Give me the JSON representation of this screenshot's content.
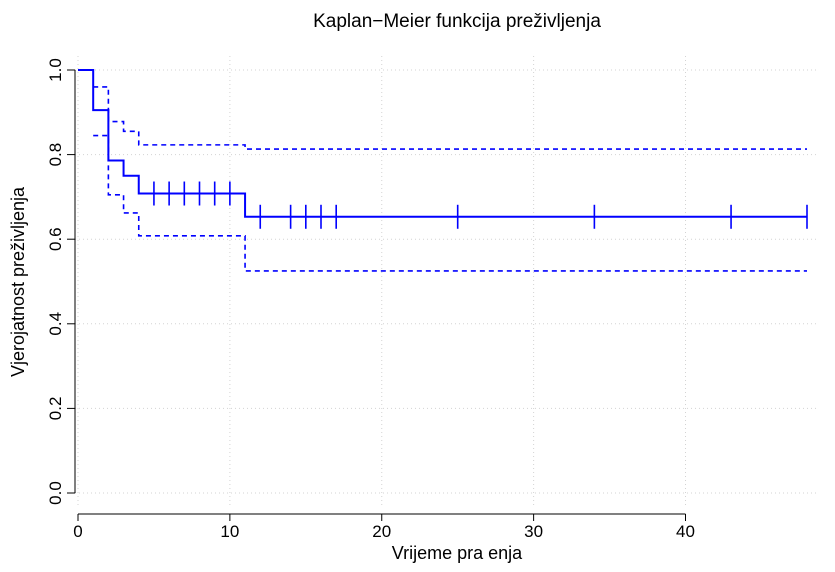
{
  "chart_data": {
    "type": "line",
    "title": "Kaplan−Meier funkcija preživljenja",
    "xlabel": "Vrijeme pra enja",
    "ylabel": "Vjerojatnost preživljenja",
    "xlim": [
      0,
      48
    ],
    "ylim": [
      0,
      1
    ],
    "x_ticks": [
      0,
      10,
      20,
      30,
      40
    ],
    "y_ticks": [
      0.0,
      0.2,
      0.4,
      0.6,
      0.8,
      1.0
    ],
    "x_tick_labels": [
      "0",
      "10",
      "20",
      "30",
      "40"
    ],
    "y_tick_labels": [
      "0.0",
      "0.2",
      "0.4",
      "0.6",
      "0.8",
      "1.0"
    ],
    "grid": true,
    "color": "#0000ff",
    "series": [
      {
        "style": "solid",
        "x": [
          0,
          1,
          2,
          3,
          4,
          11,
          48
        ],
        "y": [
          1.0,
          0.905,
          0.786,
          0.75,
          0.708,
          0.653,
          0.653
        ],
        "censor_marks": [
          {
            "x": 5,
            "y": 0.708
          },
          {
            "x": 6,
            "y": 0.708
          },
          {
            "x": 7,
            "y": 0.708
          },
          {
            "x": 8,
            "y": 0.708
          },
          {
            "x": 9,
            "y": 0.708
          },
          {
            "x": 10,
            "y": 0.708
          },
          {
            "x": 12,
            "y": 0.653
          },
          {
            "x": 14,
            "y": 0.653
          },
          {
            "x": 15,
            "y": 0.653
          },
          {
            "x": 16,
            "y": 0.653
          },
          {
            "x": 17,
            "y": 0.653
          },
          {
            "x": 25,
            "y": 0.653
          },
          {
            "x": 34,
            "y": 0.653
          },
          {
            "x": 43,
            "y": 0.653
          },
          {
            "x": 48,
            "y": 0.653
          }
        ]
      },
      {
        "style": "dashed",
        "x": [
          1,
          2,
          3,
          4,
          11,
          48
        ],
        "y": [
          0.96,
          0.878,
          0.855,
          0.823,
          0.813,
          0.813
        ]
      },
      {
        "style": "dashed",
        "x": [
          1,
          2,
          3,
          4,
          11,
          48
        ],
        "y": [
          0.845,
          0.705,
          0.662,
          0.608,
          0.525,
          0.525
        ]
      }
    ]
  }
}
